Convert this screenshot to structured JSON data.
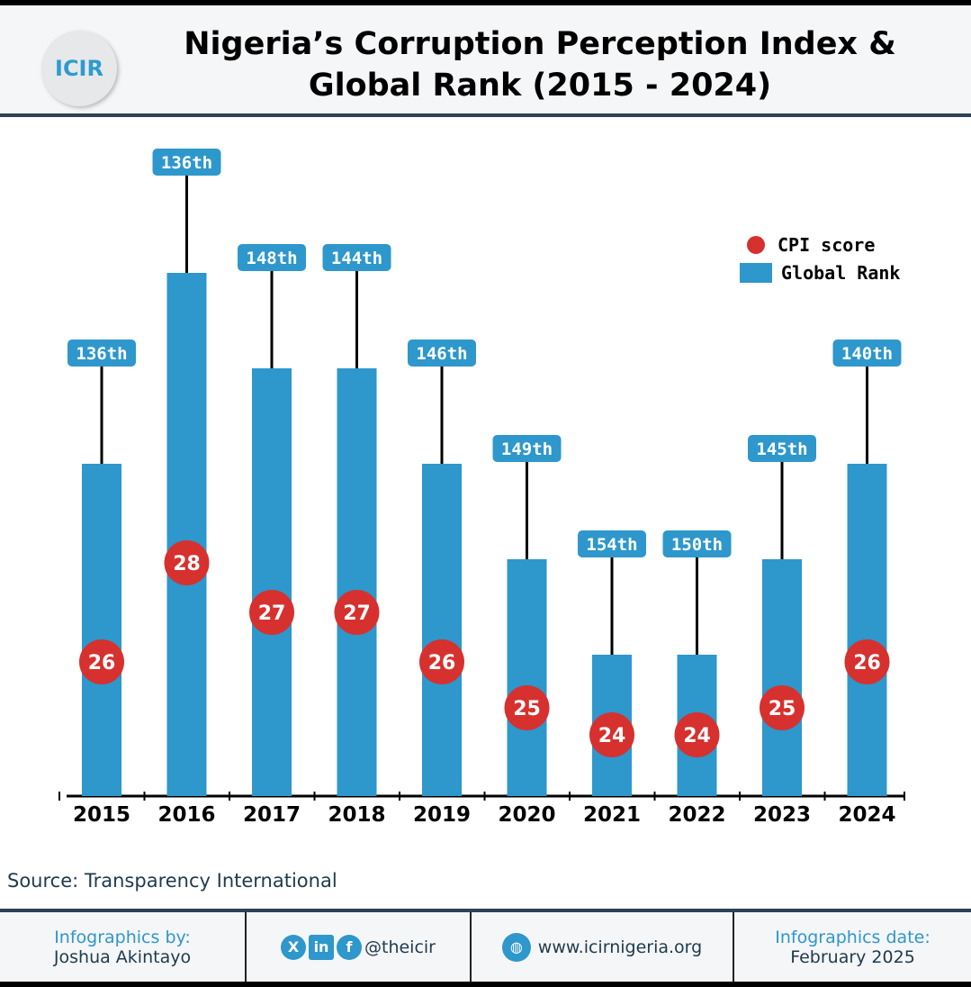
{
  "header": {
    "logo_text": "ICIR",
    "title_line1": "Nigeria’s Corruption Perception Index &",
    "title_line2": "Global Rank (2015 - 2024)"
  },
  "chart_data": {
    "type": "bar",
    "categories": [
      "2015",
      "2016",
      "2017",
      "2018",
      "2019",
      "2020",
      "2021",
      "2022",
      "2023",
      "2024"
    ],
    "series": [
      {
        "name": "CPI score",
        "values": [
          26,
          28,
          27,
          27,
          26,
          25,
          24,
          24,
          25,
          26
        ],
        "color": "#d6312e"
      },
      {
        "name": "Global Rank",
        "values": [
          "136th",
          "136th",
          "148th",
          "144th",
          "146th",
          "149th",
          "154th",
          "150th",
          "145th",
          "140th"
        ],
        "color": "#2e97cc"
      }
    ],
    "legend": "top-right"
  },
  "legend": {
    "cpi": "CPI score",
    "rank": "Global Rank"
  },
  "source": "Source: Transparency International",
  "footer": {
    "by_label": "Infographics by:",
    "by_name": "Joshua Akintayo",
    "social": "@theicir",
    "website": "www.icirnigeria.org",
    "date_label": "Infographics date:",
    "date": "February 2025",
    "icons": [
      "x-icon",
      "linkedin-icon",
      "facebook-icon",
      "globe-icon"
    ]
  }
}
